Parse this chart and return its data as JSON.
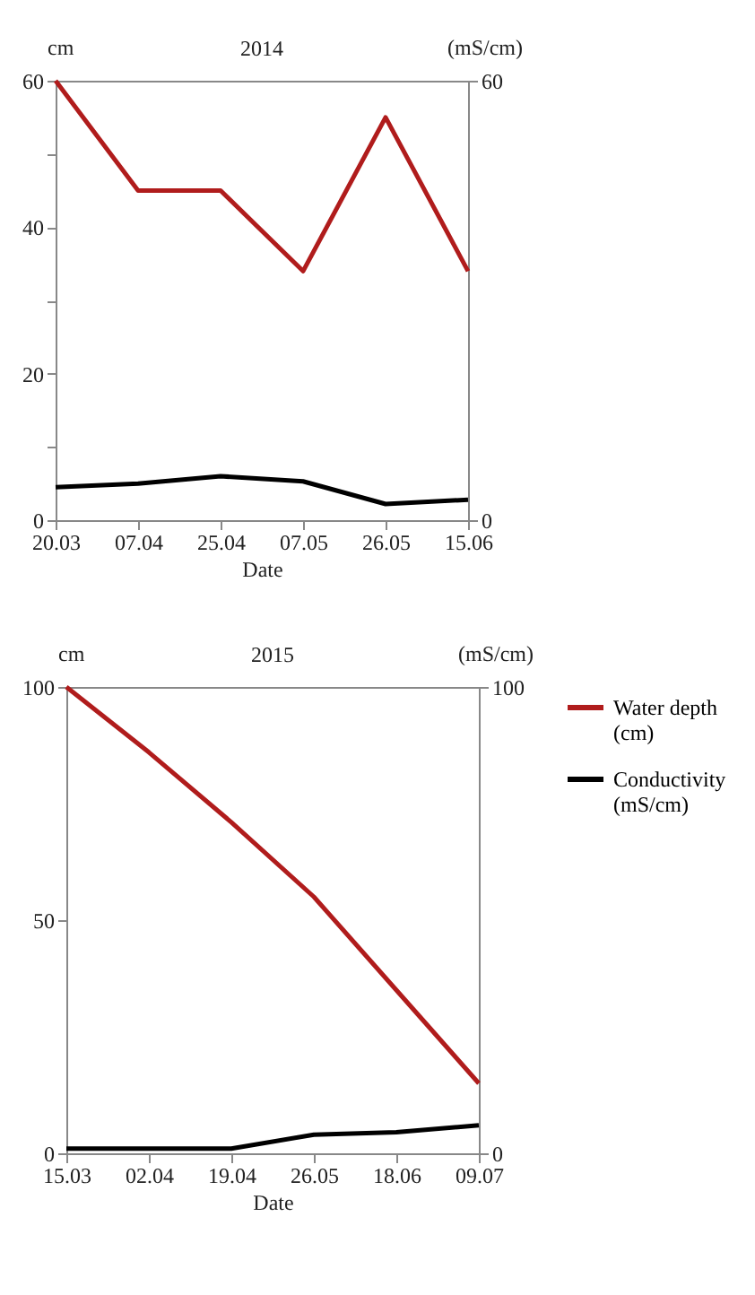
{
  "chart_data": [
    {
      "type": "line",
      "title": "2014",
      "xlabel": "Date",
      "ylabel": "cm",
      "y2label": "(mS/cm)",
      "categories": [
        "20.03",
        "07.04",
        "25.04",
        "07.05",
        "26.05",
        "15.06"
      ],
      "series": [
        {
          "color": "#b01c1c",
          "values": [
            60,
            45,
            45,
            34,
            55,
            34
          ]
        },
        {
          "color": "#000000",
          "axis": "y2",
          "values": [
            4.5,
            5,
            6,
            5.3,
            2.2,
            2.8
          ]
        }
      ],
      "ylim": [
        0,
        60
      ],
      "yticks": [
        0,
        {
          "value": 10,
          "label": null
        },
        20,
        {
          "value": 30,
          "label": null
        },
        40,
        {
          "value": 50,
          "label": null
        },
        60
      ],
      "y2lim": [
        0,
        60
      ],
      "y2ticks": [
        0,
        60
      ],
      "grid": false,
      "legend": false
    },
    {
      "type": "line",
      "title": "2015",
      "xlabel": "Date",
      "ylabel": "cm",
      "y2label": "(mS/cm)",
      "categories": [
        "15.03",
        "02.04",
        "19.04",
        "26.05",
        "18.06",
        "09.07"
      ],
      "series": [
        {
          "name": "Water depth (cm)",
          "color": "#b01c1c",
          "values": [
            100,
            86,
            71,
            55,
            35,
            15
          ]
        },
        {
          "name": "Conductivity (mS/cm)",
          "color": "#000000",
          "axis": "y2",
          "values": [
            1,
            1,
            1,
            4,
            4.5,
            6
          ]
        }
      ],
      "ylim": [
        0,
        100
      ],
      "yticks": [
        0,
        50,
        100
      ],
      "y2lim": [
        0,
        100
      ],
      "y2ticks": [
        0,
        100
      ],
      "grid": false,
      "legend": "right"
    }
  ]
}
